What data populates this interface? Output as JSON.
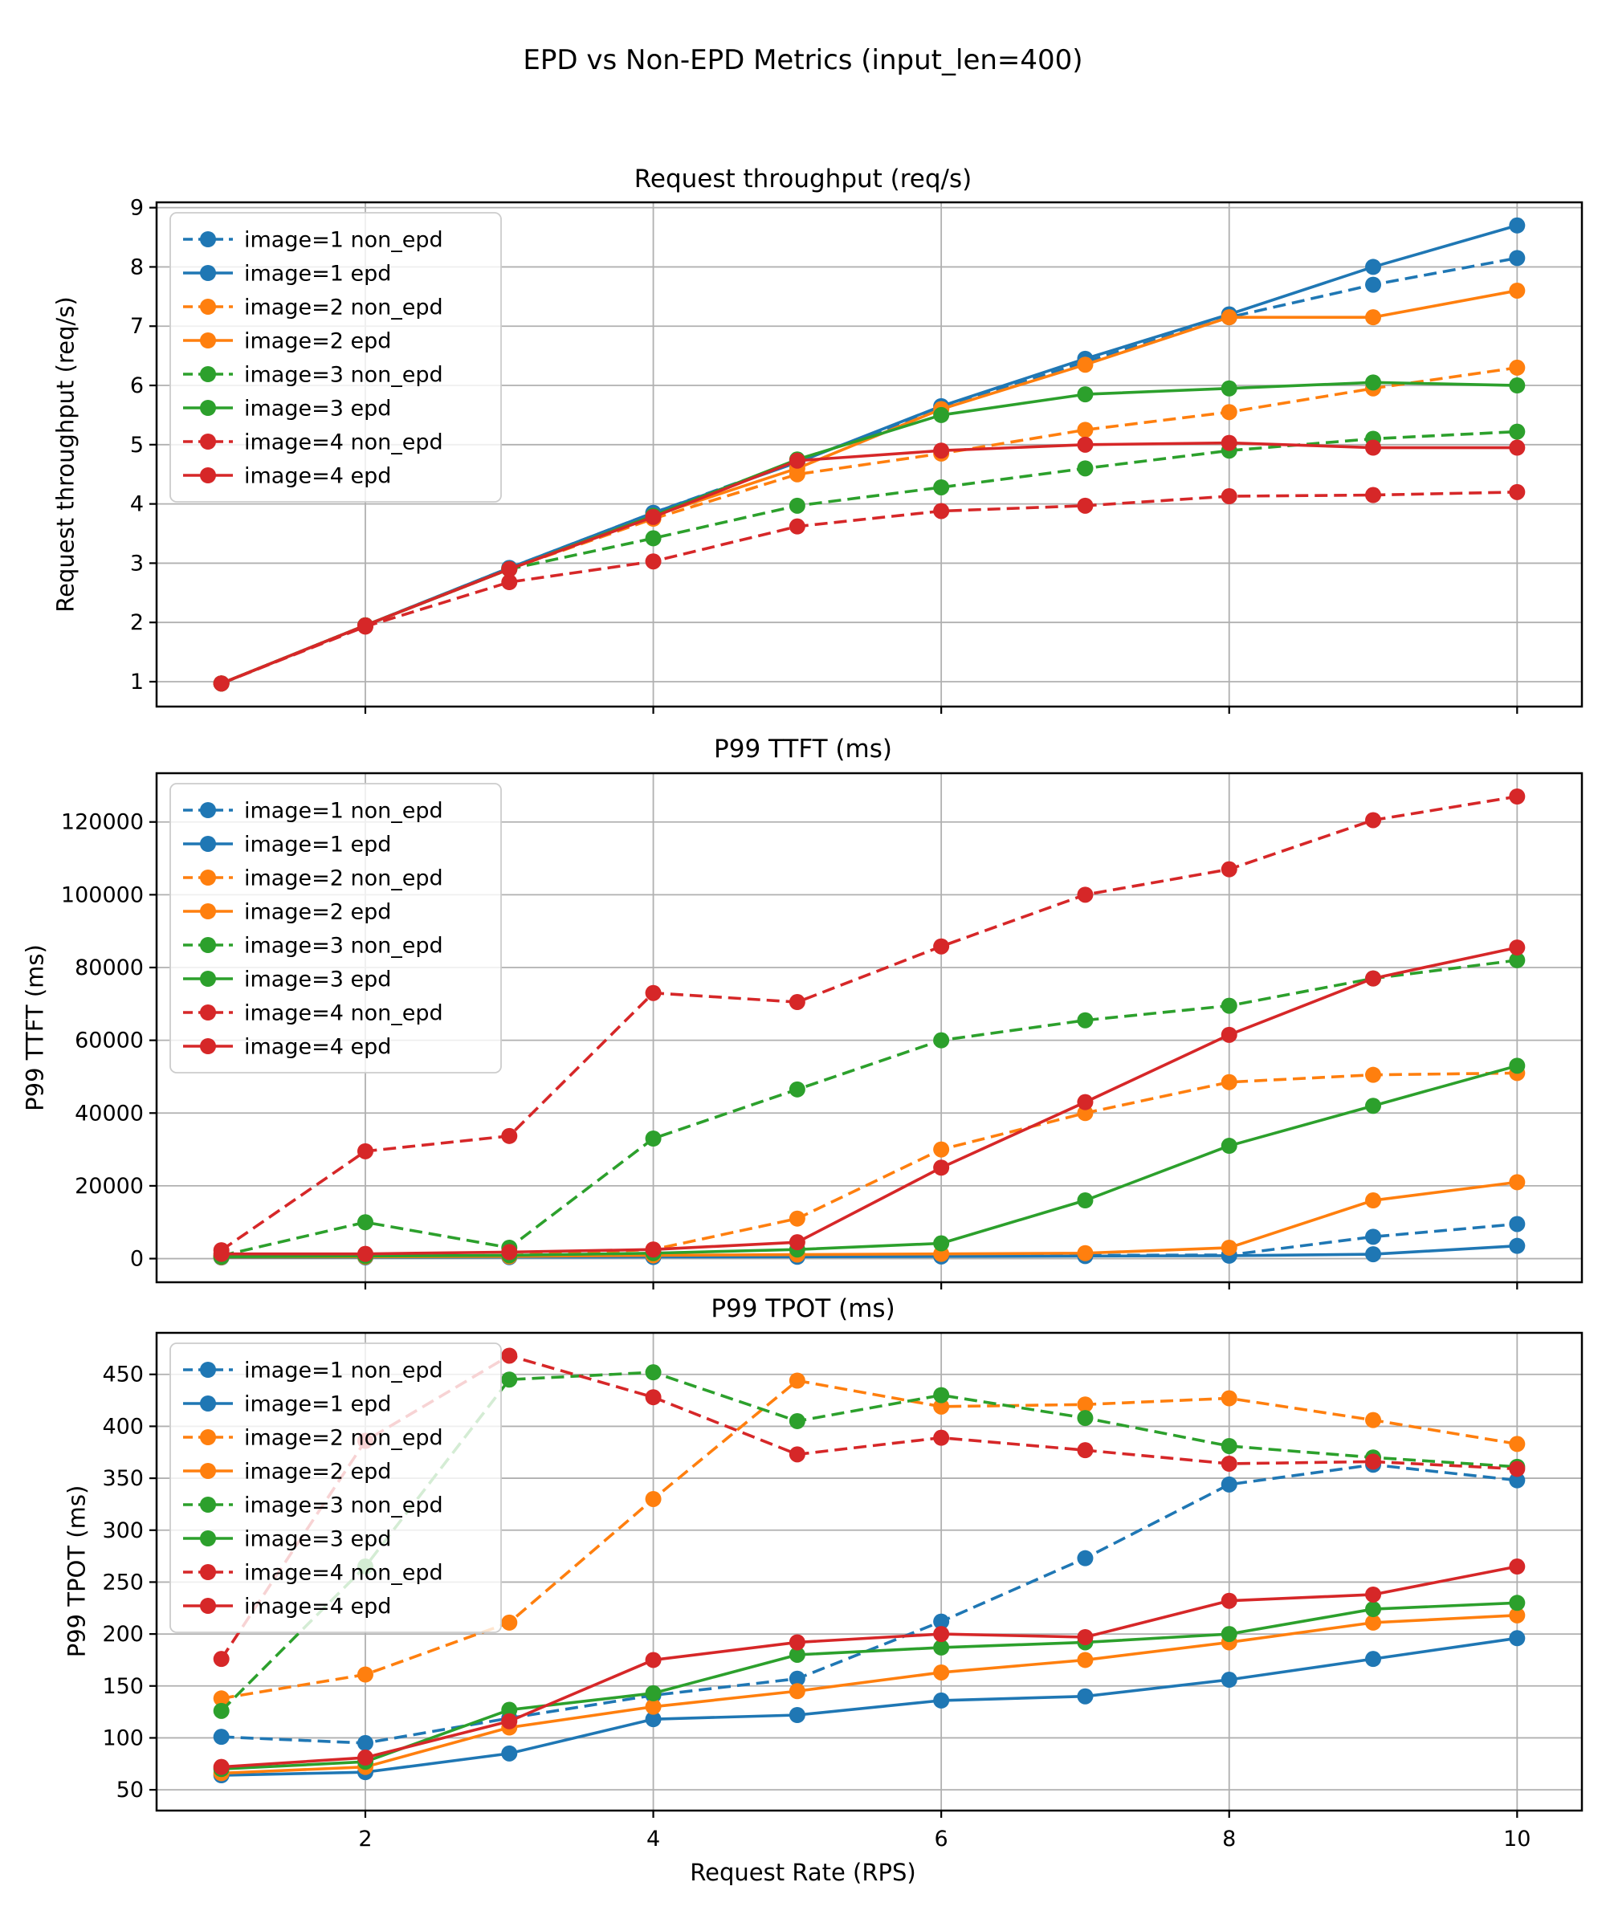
{
  "figure": {
    "title": "EPD vs Non-EPD Metrics (input_len=400)"
  },
  "chart_data": [
    {
      "type": "line",
      "title": "Request throughput (req/s)",
      "ylabel": "Request throughput (req/s)",
      "xlabel": "",
      "x": [
        1,
        2,
        3,
        4,
        5,
        6,
        7,
        8,
        9,
        10
      ],
      "xlim": [
        0.55,
        10.45
      ],
      "ylim": [
        0.58,
        9.09
      ],
      "xticks": [
        2,
        4,
        6,
        8,
        10
      ],
      "yticks": [
        1,
        2,
        3,
        4,
        5,
        6,
        7,
        8,
        9
      ],
      "show_x_tick_labels": false,
      "grid": true,
      "legend_position": "upper-left",
      "series": [
        {
          "name": "image=1 non_epd",
          "color": "#1f77b4",
          "dashed": true,
          "values": [
            0.97,
            1.95,
            2.92,
            3.85,
            4.72,
            5.6,
            6.4,
            7.15,
            7.7,
            8.15
          ]
        },
        {
          "name": "image=1 epd",
          "color": "#1f77b4",
          "dashed": false,
          "values": [
            0.97,
            1.95,
            2.92,
            3.85,
            4.7,
            5.65,
            6.45,
            7.2,
            8.0,
            8.7
          ]
        },
        {
          "name": "image=2 non_epd",
          "color": "#ff7f0e",
          "dashed": true,
          "values": [
            0.97,
            1.95,
            2.9,
            3.75,
            4.5,
            4.85,
            5.25,
            5.55,
            5.95,
            6.3
          ]
        },
        {
          "name": "image=2 epd",
          "color": "#ff7f0e",
          "dashed": false,
          "values": [
            0.97,
            1.95,
            2.9,
            3.8,
            4.6,
            5.6,
            6.35,
            7.15,
            7.15,
            7.6
          ]
        },
        {
          "name": "image=3 non_epd",
          "color": "#2ca02c",
          "dashed": true,
          "values": [
            0.97,
            1.95,
            2.9,
            3.42,
            3.97,
            4.28,
            4.6,
            4.9,
            5.1,
            5.22
          ]
        },
        {
          "name": "image=3 epd",
          "color": "#2ca02c",
          "dashed": false,
          "values": [
            0.97,
            1.95,
            2.9,
            3.8,
            4.75,
            5.5,
            5.85,
            5.95,
            6.05,
            6.0
          ]
        },
        {
          "name": "image=4 non_epd",
          "color": "#d62728",
          "dashed": true,
          "values": [
            0.97,
            1.93,
            2.68,
            3.03,
            3.62,
            3.88,
            3.97,
            4.13,
            4.15,
            4.2
          ]
        },
        {
          "name": "image=4 epd",
          "color": "#d62728",
          "dashed": false,
          "values": [
            0.97,
            1.95,
            2.9,
            3.78,
            4.73,
            4.9,
            5.0,
            5.03,
            4.95,
            4.95
          ]
        }
      ]
    },
    {
      "type": "line",
      "title": "P99 TTFT (ms)",
      "ylabel": "P99 TTFT (ms)",
      "xlabel": "",
      "x": [
        1,
        2,
        3,
        4,
        5,
        6,
        7,
        8,
        9,
        10
      ],
      "xlim": [
        0.55,
        10.45
      ],
      "ylim": [
        -6500,
        133400
      ],
      "xticks": [
        2,
        4,
        6,
        8,
        10
      ],
      "yticks": [
        0,
        20000,
        40000,
        60000,
        80000,
        100000,
        120000
      ],
      "show_x_tick_labels": false,
      "grid": true,
      "legend_position": "upper-left",
      "series": [
        {
          "name": "image=1 non_epd",
          "color": "#1f77b4",
          "dashed": true,
          "values": [
            400,
            450,
            500,
            600,
            700,
            800,
            900,
            1000,
            6000,
            9500
          ]
        },
        {
          "name": "image=1 epd",
          "color": "#1f77b4",
          "dashed": false,
          "values": [
            300,
            350,
            400,
            450,
            500,
            600,
            700,
            800,
            1200,
            3500
          ]
        },
        {
          "name": "image=2 non_epd",
          "color": "#ff7f0e",
          "dashed": true,
          "values": [
            500,
            600,
            900,
            2500,
            11000,
            30000,
            40000,
            48500,
            50500,
            51000
          ]
        },
        {
          "name": "image=2 epd",
          "color": "#ff7f0e",
          "dashed": false,
          "values": [
            400,
            500,
            600,
            900,
            1100,
            1300,
            1500,
            3000,
            16000,
            21000
          ]
        },
        {
          "name": "image=3 non_epd",
          "color": "#2ca02c",
          "dashed": true,
          "values": [
            800,
            10000,
            3000,
            33000,
            46500,
            60000,
            65500,
            69500,
            77000,
            82000
          ]
        },
        {
          "name": "image=3 epd",
          "color": "#2ca02c",
          "dashed": false,
          "values": [
            500,
            700,
            900,
            1500,
            2500,
            4200,
            16000,
            31000,
            42000,
            53000
          ]
        },
        {
          "name": "image=4 non_epd",
          "color": "#d62728",
          "dashed": true,
          "values": [
            2300,
            29500,
            33700,
            73000,
            70500,
            85800,
            100000,
            107000,
            120500,
            127000
          ]
        },
        {
          "name": "image=4 epd",
          "color": "#d62728",
          "dashed": false,
          "values": [
            1300,
            1300,
            1800,
            2500,
            4500,
            25000,
            43000,
            61500,
            77000,
            85500
          ]
        }
      ]
    },
    {
      "type": "line",
      "title": "P99 TPOT (ms)",
      "ylabel": "P99 TPOT (ms)",
      "xlabel": "Request Rate (RPS)",
      "x": [
        1,
        2,
        3,
        4,
        5,
        6,
        7,
        8,
        9,
        10
      ],
      "xlim": [
        0.55,
        10.45
      ],
      "ylim": [
        30,
        490
      ],
      "xticks": [
        2,
        4,
        6,
        8,
        10
      ],
      "yticks": [
        50,
        100,
        150,
        200,
        250,
        300,
        350,
        400,
        450
      ],
      "show_x_tick_labels": true,
      "grid": true,
      "legend_position": "upper-left",
      "series": [
        {
          "name": "image=1 non_epd",
          "color": "#1f77b4",
          "dashed": true,
          "values": [
            101,
            95,
            119,
            141,
            157,
            212,
            273,
            344,
            363,
            348
          ]
        },
        {
          "name": "image=1 epd",
          "color": "#1f77b4",
          "dashed": false,
          "values": [
            64,
            67,
            85,
            118,
            122,
            136,
            140,
            156,
            176,
            196
          ]
        },
        {
          "name": "image=2 non_epd",
          "color": "#ff7f0e",
          "dashed": true,
          "values": [
            138,
            161,
            211,
            330,
            444,
            419,
            421,
            427,
            406,
            383
          ]
        },
        {
          "name": "image=2 epd",
          "color": "#ff7f0e",
          "dashed": false,
          "values": [
            66,
            72,
            110,
            130,
            145,
            163,
            175,
            192,
            211,
            218
          ]
        },
        {
          "name": "image=3 non_epd",
          "color": "#2ca02c",
          "dashed": true,
          "values": [
            126,
            265,
            445,
            452,
            405,
            430,
            408,
            381,
            370,
            361
          ]
        },
        {
          "name": "image=3 epd",
          "color": "#2ca02c",
          "dashed": false,
          "values": [
            70,
            77,
            127,
            143,
            180,
            187,
            192,
            200,
            224,
            230
          ]
        },
        {
          "name": "image=4 non_epd",
          "color": "#d62728",
          "dashed": true,
          "values": [
            176,
            386,
            468,
            428,
            373,
            389,
            377,
            364,
            366,
            359
          ]
        },
        {
          "name": "image=4 epd",
          "color": "#d62728",
          "dashed": false,
          "values": [
            72,
            81,
            116,
            175,
            192,
            200,
            197,
            232,
            238,
            265
          ]
        }
      ]
    }
  ],
  "style": {
    "grid_color": "#b0b0b0",
    "spine_color": "#000000",
    "tick_label_size": 27,
    "legend_font_size": 27
  }
}
